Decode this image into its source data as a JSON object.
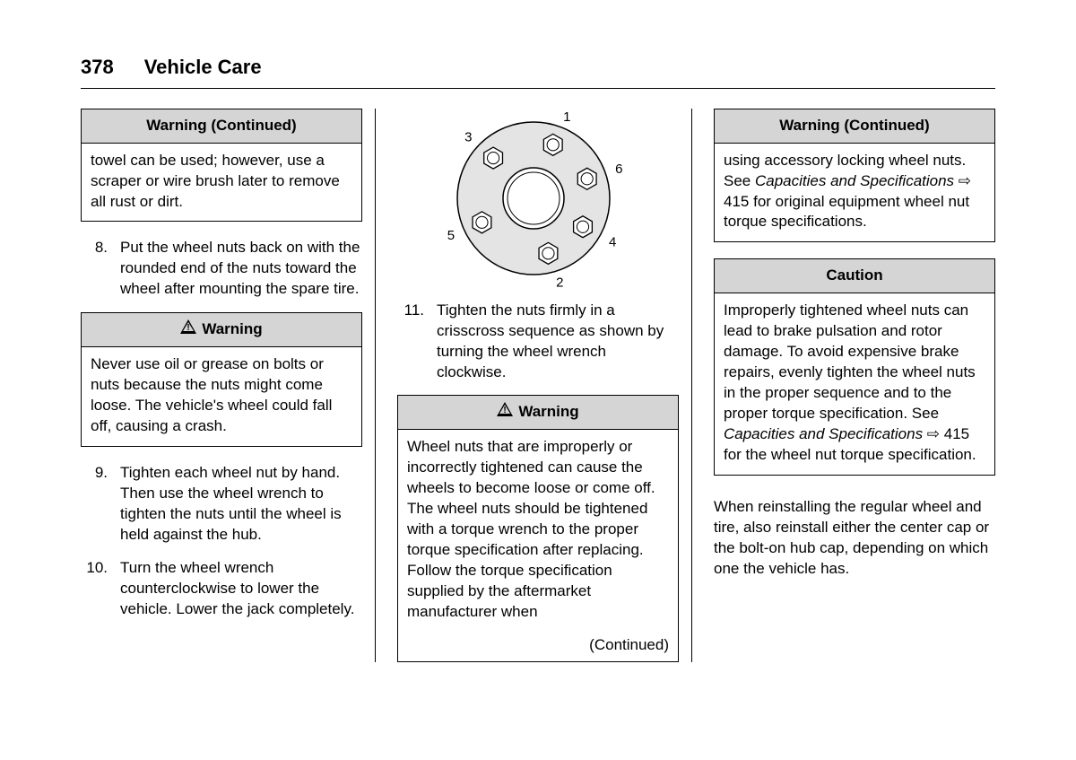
{
  "header": {
    "page_number": "378",
    "section_title": "Vehicle Care"
  },
  "warning_label": "Warning",
  "warning_continued_label": "Warning  (Continued)",
  "caution_label": "Caution",
  "continued_label": "(Continued)",
  "col1": {
    "warning_cont_body": "towel can be used; however, use a scraper or wire brush later to remove all rust or dirt.",
    "step8_num": "8.",
    "step8": "Put the wheel nuts back on with the rounded end of the nuts toward the wheel after mounting the spare tire.",
    "warning2_body": "Never use oil or grease on bolts or nuts because the nuts might come loose. The vehicle's wheel could fall off, causing a crash.",
    "step9_num": "9.",
    "step9": "Tighten each wheel nut by hand. Then use the wheel wrench to tighten the nuts until the wheel is held against the hub.",
    "step10_num": "10.",
    "step10": "Turn the wheel wrench counterclockwise to lower the vehicle. Lower the jack completely."
  },
  "col2": {
    "diagram": {
      "outer_r": 85,
      "hub_r": 34,
      "nut_r": 12,
      "fill": "#e4e4e4",
      "stroke": "#000",
      "nuts": [
        {
          "angle": -70,
          "label": "1"
        },
        {
          "angle": 75,
          "label": "2"
        },
        {
          "angle": -135,
          "label": "3"
        },
        {
          "angle": 30,
          "label": "4"
        },
        {
          "angle": 155,
          "label": "5"
        },
        {
          "angle": -20,
          "label": "6"
        }
      ]
    },
    "step11_num": "11.",
    "step11": "Tighten the nuts firmly in a crisscross sequence as shown by turning the wheel wrench clockwise.",
    "warning3_body": "Wheel nuts that are improperly or incorrectly tightened can cause the wheels to become loose or come off. The wheel nuts should be tightened with a torque wrench to the proper torque specification after replacing. Follow the torque specification supplied by the aftermarket manufacturer when"
  },
  "col3": {
    "warning_cont_body_a": "using accessory locking wheel nuts. See ",
    "warning_cont_ref": "Capacities and Specifications",
    "warning_cont_ref_sym": " ⇨ 415",
    "warning_cont_body_b": " for original equipment wheel nut torque specifications.",
    "caution_body_a": "Improperly tightened wheel nuts can lead to brake pulsation and rotor damage. To avoid expensive brake repairs, evenly tighten the wheel nuts in the proper sequence and to the proper torque specification. See ",
    "caution_ref": "Capacities and Specifications",
    "caution_ref_sym": " ⇨ 415",
    "caution_body_b": " for the wheel nut torque specification.",
    "trailing": "When reinstalling the regular wheel and tire, also reinstall either the center cap or the bolt-on hub cap, depending on which one the vehicle has."
  }
}
